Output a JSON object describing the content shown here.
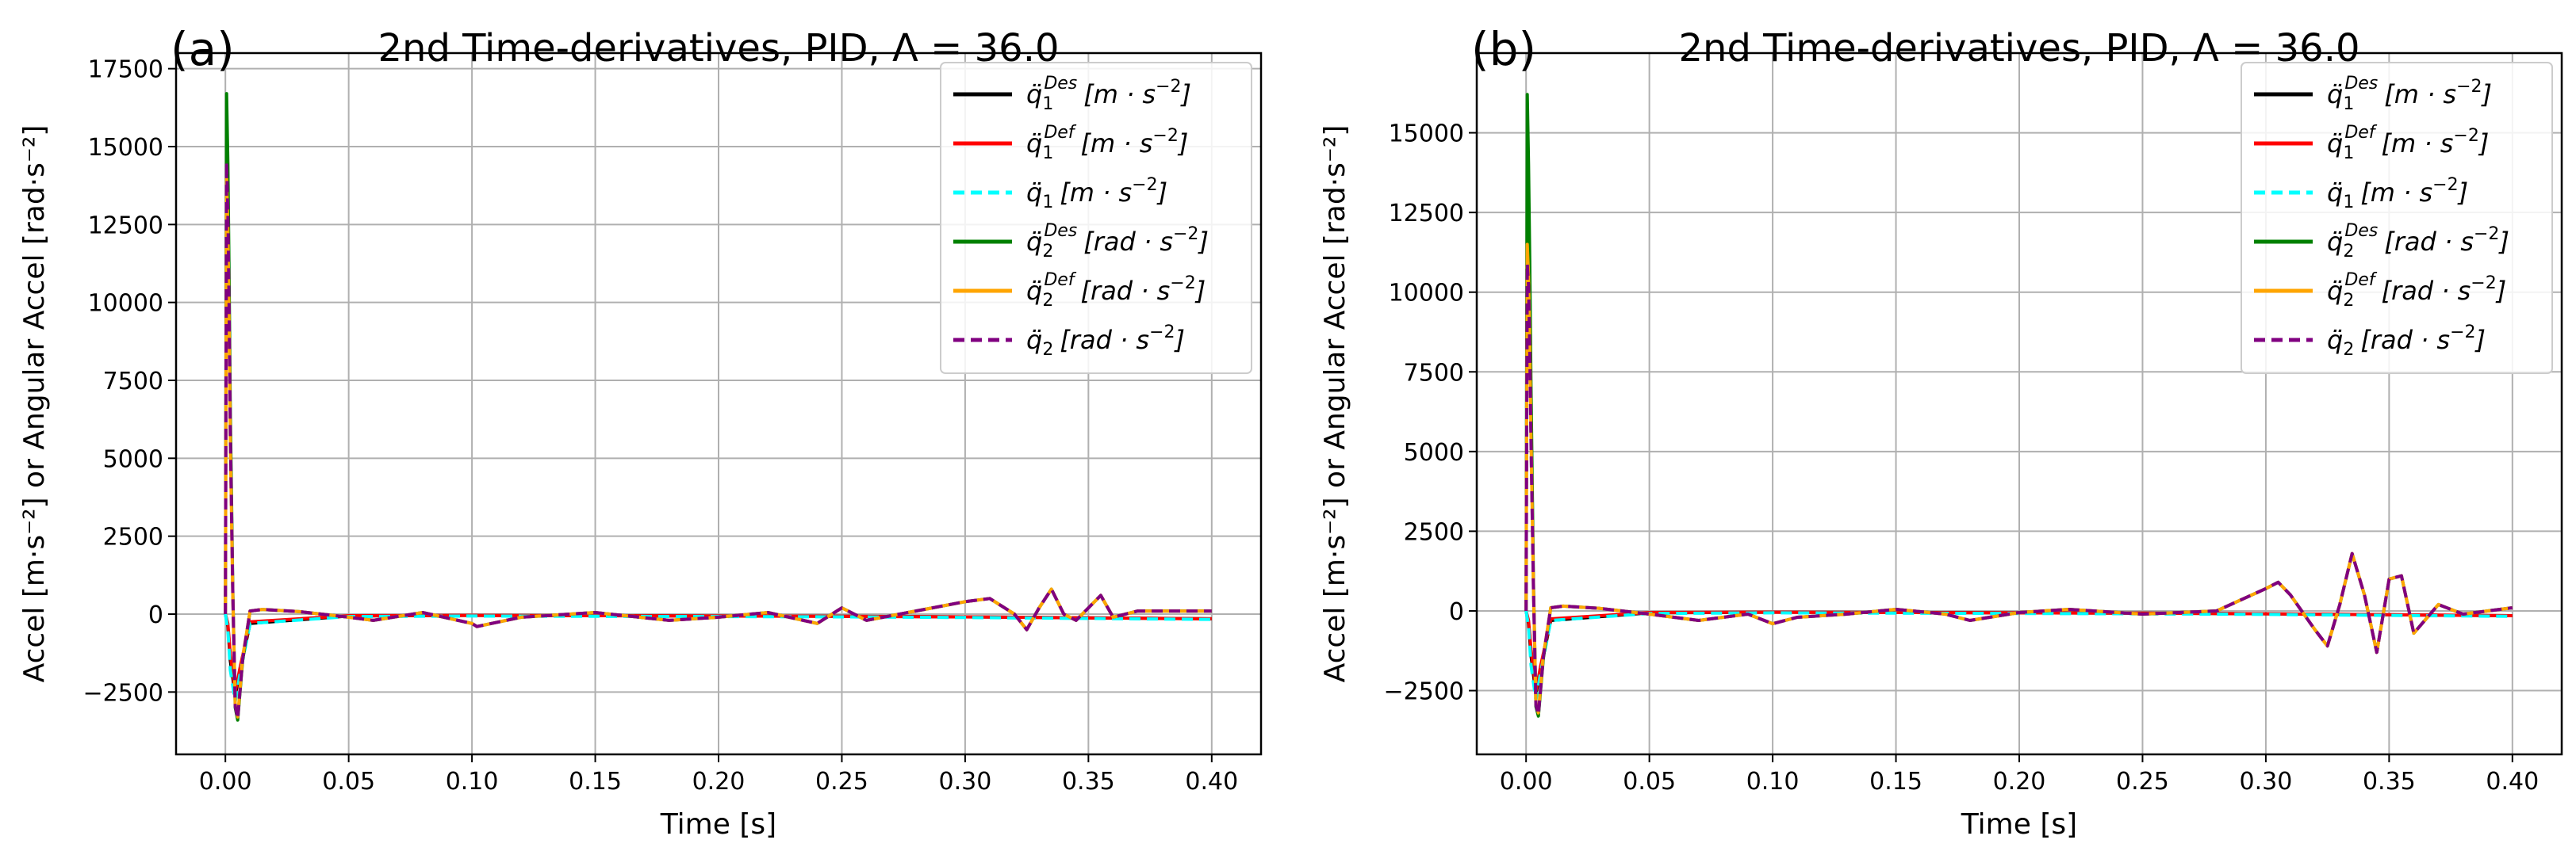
{
  "figure": {
    "charts": [
      {
        "panel_label": "(a)",
        "title": "2nd Time-derivatives, PID, Λ = 36.0"
      },
      {
        "panel_label": "(b)",
        "title": "2nd Time-derivatives, PID, Λ = 36.0"
      }
    ]
  },
  "colors": {
    "q1_des": "#000000",
    "q1_def": "#ff0000",
    "q1": "#00ffff",
    "q2_des": "#008000",
    "q2_def": "#ffa500",
    "q2": "#800080",
    "grid": "#b0b0b0"
  },
  "chart_data": [
    {
      "type": "line",
      "panel": "(a)",
      "title": "2nd Time-derivatives, PID, Λ = 36.0",
      "xlabel": "Time [s]",
      "ylabel": "Accel [m·s⁻²] or Angular Accel [rad·s⁻²]",
      "xlim": [
        -0.02,
        0.42
      ],
      "ylim": [
        -4500,
        18000
      ],
      "xticks": [
        0.0,
        0.05,
        0.1,
        0.15,
        0.2,
        0.25,
        0.3,
        0.35,
        0.4
      ],
      "xtick_labels": [
        "0.00",
        "0.05",
        "0.10",
        "0.15",
        "0.20",
        "0.25",
        "0.30",
        "0.35",
        "0.40"
      ],
      "yticks": [
        -2500,
        0,
        2500,
        5000,
        7500,
        10000,
        12500,
        15000,
        17500
      ],
      "ytick_labels": [
        "−2500",
        "0",
        "2500",
        "5000",
        "7500",
        "10000",
        "12500",
        "15000",
        "17500"
      ],
      "grid": true,
      "legend_position": "top-right",
      "series": [
        {
          "key": "q1_des",
          "name": "q̈₁ᴰᵉˢ [m · s⁻²]",
          "style": "solid",
          "x": [
            0.0,
            0.001,
            0.002,
            0.004,
            0.006,
            0.01,
            0.05,
            0.1,
            0.15,
            0.2,
            0.25,
            0.3,
            0.35,
            0.4
          ],
          "y": [
            0,
            -400,
            -1500,
            -2600,
            -1800,
            -300,
            -60,
            -40,
            -50,
            -60,
            -70,
            -90,
            -120,
            -150
          ]
        },
        {
          "key": "q1_def",
          "name": "q̈₁ᴰᵉᶠ [m · s⁻²]",
          "style": "solid",
          "x": [
            0.0,
            0.001,
            0.002,
            0.004,
            0.006,
            0.01,
            0.05,
            0.1,
            0.15,
            0.2,
            0.25,
            0.3,
            0.35,
            0.4
          ],
          "y": [
            0,
            -300,
            -1300,
            -2500,
            -1700,
            -250,
            -50,
            -40,
            -50,
            -60,
            -70,
            -90,
            -120,
            -150
          ]
        },
        {
          "key": "q1",
          "name": "q̈₁ [m · s⁻²]",
          "style": "dashed",
          "x": [
            0.0,
            0.001,
            0.002,
            0.004,
            0.006,
            0.01,
            0.05,
            0.1,
            0.15,
            0.2,
            0.25,
            0.3,
            0.35,
            0.4
          ],
          "y": [
            0,
            -500,
            -1800,
            -2800,
            -1900,
            -300,
            -80,
            -60,
            -70,
            -80,
            -90,
            -110,
            -140,
            -170
          ]
        },
        {
          "key": "q2_des",
          "name": "q̈₂ᴰᵉˢ [rad · s⁻²]",
          "style": "solid",
          "x": [
            0.0,
            0.0005,
            0.001,
            0.0015,
            0.002,
            0.003,
            0.004,
            0.005,
            0.007,
            0.01,
            0.015,
            0.03,
            0.05,
            0.06,
            0.08,
            0.1,
            0.102,
            0.12,
            0.15,
            0.18,
            0.2,
            0.22,
            0.24,
            0.25,
            0.26,
            0.28,
            0.3,
            0.31,
            0.32,
            0.325,
            0.33,
            0.335,
            0.34,
            0.345,
            0.35,
            0.355,
            0.36,
            0.37,
            0.4
          ],
          "y": [
            0,
            16700,
            14500,
            11000,
            6500,
            800,
            -3000,
            -3400,
            -1500,
            100,
            150,
            80,
            -100,
            -200,
            50,
            -300,
            -400,
            -100,
            50,
            -200,
            -100,
            50,
            -300,
            200,
            -200,
            100,
            400,
            500,
            0,
            -500,
            200,
            800,
            0,
            -200,
            200,
            600,
            -100,
            100,
            100
          ]
        },
        {
          "key": "q2_def",
          "name": "q̈₂ᴰᵉᶠ [rad · s⁻²]",
          "style": "solid",
          "x": [
            0.0,
            0.0005,
            0.001,
            0.0015,
            0.002,
            0.003,
            0.004,
            0.005,
            0.007,
            0.01,
            0.015,
            0.03,
            0.05,
            0.06,
            0.08,
            0.1,
            0.102,
            0.12,
            0.15,
            0.18,
            0.2,
            0.22,
            0.24,
            0.25,
            0.26,
            0.28,
            0.3,
            0.31,
            0.32,
            0.325,
            0.33,
            0.335,
            0.34,
            0.345,
            0.35,
            0.355,
            0.36,
            0.37,
            0.4
          ],
          "y": [
            0,
            14000,
            12500,
            9500,
            5500,
            600,
            -2900,
            -3300,
            -1400,
            100,
            150,
            80,
            -100,
            -200,
            50,
            -300,
            -400,
            -100,
            50,
            -200,
            -100,
            50,
            -300,
            200,
            -200,
            100,
            400,
            500,
            0,
            -500,
            200,
            800,
            0,
            -200,
            200,
            600,
            -100,
            100,
            100
          ]
        },
        {
          "key": "q2",
          "name": "q̈₂ [rad · s⁻²]",
          "style": "dashed",
          "x": [
            0.0,
            0.0005,
            0.001,
            0.0015,
            0.002,
            0.003,
            0.004,
            0.005,
            0.007,
            0.01,
            0.015,
            0.03,
            0.05,
            0.06,
            0.08,
            0.1,
            0.102,
            0.12,
            0.15,
            0.18,
            0.2,
            0.22,
            0.24,
            0.25,
            0.26,
            0.28,
            0.3,
            0.31,
            0.32,
            0.325,
            0.33,
            0.335,
            0.34,
            0.345,
            0.35,
            0.355,
            0.36,
            0.37,
            0.4
          ],
          "y": [
            0,
            14500,
            13000,
            10000,
            5800,
            700,
            -2950,
            -3350,
            -1450,
            100,
            150,
            80,
            -100,
            -200,
            50,
            -300,
            -400,
            -100,
            50,
            -200,
            -100,
            50,
            -300,
            200,
            -200,
            100,
            400,
            500,
            0,
            -500,
            200,
            800,
            0,
            -200,
            200,
            600,
            -100,
            100,
            100
          ]
        }
      ]
    },
    {
      "type": "line",
      "panel": "(b)",
      "title": "2nd Time-derivatives, PID, Λ = 36.0",
      "xlabel": "Time [s]",
      "ylabel": "Accel [m·s⁻²] or Angular Accel [rad·s⁻²]",
      "xlim": [
        -0.02,
        0.42
      ],
      "ylim": [
        -4500,
        17500
      ],
      "xticks": [
        0.0,
        0.05,
        0.1,
        0.15,
        0.2,
        0.25,
        0.3,
        0.35,
        0.4
      ],
      "xtick_labels": [
        "0.00",
        "0.05",
        "0.10",
        "0.15",
        "0.20",
        "0.25",
        "0.30",
        "0.35",
        "0.40"
      ],
      "yticks": [
        -2500,
        0,
        2500,
        5000,
        7500,
        10000,
        12500,
        15000
      ],
      "ytick_labels": [
        "−2500",
        "0",
        "2500",
        "5000",
        "7500",
        "10000",
        "12500",
        "15000"
      ],
      "grid": true,
      "legend_position": "top-right",
      "series": [
        {
          "key": "q1_des",
          "name": "q̈₁ᴰᵉˢ [m · s⁻²]",
          "style": "solid",
          "x": [
            0.0,
            0.001,
            0.002,
            0.004,
            0.006,
            0.01,
            0.05,
            0.1,
            0.15,
            0.2,
            0.25,
            0.3,
            0.35,
            0.4
          ],
          "y": [
            0,
            -400,
            -1400,
            -2600,
            -1800,
            -300,
            -60,
            -40,
            -50,
            -60,
            -70,
            -90,
            -120,
            -150
          ]
        },
        {
          "key": "q1_def",
          "name": "q̈₁ᴰᵉᶠ [m · s⁻²]",
          "style": "solid",
          "x": [
            0.0,
            0.001,
            0.002,
            0.004,
            0.006,
            0.01,
            0.05,
            0.1,
            0.15,
            0.2,
            0.25,
            0.3,
            0.35,
            0.4
          ],
          "y": [
            0,
            -300,
            -1200,
            -2500,
            -1700,
            -250,
            -50,
            -40,
            -50,
            -60,
            -70,
            -90,
            -120,
            -150
          ]
        },
        {
          "key": "q1",
          "name": "q̈₁ [m · s⁻²]",
          "style": "dashed",
          "x": [
            0.0,
            0.001,
            0.002,
            0.004,
            0.006,
            0.01,
            0.05,
            0.1,
            0.15,
            0.2,
            0.25,
            0.3,
            0.35,
            0.4
          ],
          "y": [
            0,
            -500,
            -1700,
            -2800,
            -1900,
            -300,
            -80,
            -60,
            -70,
            -80,
            -90,
            -110,
            -140,
            -170
          ]
        },
        {
          "key": "q2_des",
          "name": "q̈₂ᴰᵉˢ [rad · s⁻²]",
          "style": "solid",
          "x": [
            0.0,
            0.0005,
            0.001,
            0.0015,
            0.002,
            0.003,
            0.004,
            0.005,
            0.007,
            0.01,
            0.015,
            0.03,
            0.05,
            0.07,
            0.09,
            0.1,
            0.11,
            0.13,
            0.15,
            0.17,
            0.18,
            0.2,
            0.22,
            0.25,
            0.28,
            0.3,
            0.305,
            0.31,
            0.32,
            0.325,
            0.33,
            0.335,
            0.34,
            0.345,
            0.35,
            0.355,
            0.36,
            0.37,
            0.38,
            0.4
          ],
          "y": [
            0,
            16200,
            14000,
            11000,
            7000,
            900,
            -3000,
            -3300,
            -1500,
            100,
            150,
            80,
            -100,
            -300,
            -100,
            -400,
            -200,
            -100,
            50,
            -100,
            -300,
            -50,
            50,
            -100,
            0,
            700,
            900,
            500,
            -600,
            -1100,
            200,
            1800,
            500,
            -1300,
            1000,
            1100,
            -700,
            200,
            -100,
            100
          ]
        },
        {
          "key": "q2_def",
          "name": "q̈₂ᴰᵉᶠ [rad · s⁻²]",
          "style": "solid",
          "x": [
            0.0,
            0.0005,
            0.001,
            0.0015,
            0.002,
            0.003,
            0.004,
            0.005,
            0.007,
            0.01,
            0.015,
            0.03,
            0.05,
            0.07,
            0.09,
            0.1,
            0.11,
            0.13,
            0.15,
            0.17,
            0.18,
            0.2,
            0.22,
            0.25,
            0.28,
            0.3,
            0.305,
            0.31,
            0.32,
            0.325,
            0.33,
            0.335,
            0.34,
            0.345,
            0.35,
            0.355,
            0.36,
            0.37,
            0.38,
            0.4
          ],
          "y": [
            0,
            11500,
            10500,
            8500,
            5500,
            700,
            -2900,
            -3200,
            -1400,
            100,
            150,
            80,
            -100,
            -300,
            -100,
            -400,
            -200,
            -100,
            50,
            -100,
            -300,
            -50,
            50,
            -100,
            0,
            700,
            900,
            500,
            -600,
            -1100,
            200,
            1800,
            500,
            -1300,
            1000,
            1100,
            -700,
            200,
            -100,
            100
          ]
        },
        {
          "key": "q2",
          "name": "q̈₂ [rad · s⁻²]",
          "style": "dashed",
          "x": [
            0.0,
            0.0005,
            0.001,
            0.0015,
            0.002,
            0.003,
            0.004,
            0.005,
            0.007,
            0.01,
            0.015,
            0.03,
            0.05,
            0.07,
            0.09,
            0.1,
            0.11,
            0.13,
            0.15,
            0.17,
            0.18,
            0.2,
            0.22,
            0.25,
            0.28,
            0.3,
            0.305,
            0.31,
            0.32,
            0.325,
            0.33,
            0.335,
            0.34,
            0.345,
            0.35,
            0.355,
            0.36,
            0.37,
            0.38,
            0.4
          ],
          "y": [
            0,
            10900,
            10200,
            8200,
            5300,
            650,
            -2950,
            -3250,
            -1450,
            100,
            150,
            80,
            -100,
            -300,
            -100,
            -400,
            -200,
            -100,
            50,
            -100,
            -300,
            -50,
            50,
            -100,
            0,
            700,
            900,
            500,
            -600,
            -1100,
            200,
            1800,
            500,
            -1300,
            1000,
            1100,
            -700,
            200,
            -100,
            100
          ]
        }
      ]
    }
  ]
}
